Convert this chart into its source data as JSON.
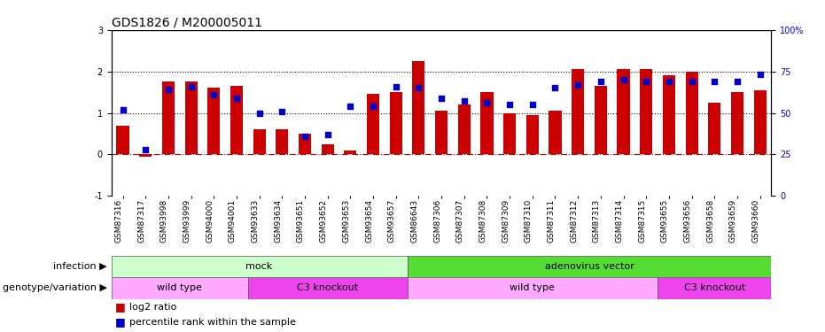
{
  "title": "GDS1826 / M200005011",
  "samples": [
    "GSM87316",
    "GSM87317",
    "GSM93998",
    "GSM93999",
    "GSM94000",
    "GSM94001",
    "GSM93633",
    "GSM93634",
    "GSM93651",
    "GSM93652",
    "GSM93653",
    "GSM93654",
    "GSM93657",
    "GSM86643",
    "GSM87306",
    "GSM87307",
    "GSM87308",
    "GSM87309",
    "GSM87310",
    "GSM87311",
    "GSM87312",
    "GSM87313",
    "GSM87314",
    "GSM87315",
    "GSM93655",
    "GSM93656",
    "GSM93658",
    "GSM93659",
    "GSM93660"
  ],
  "log2_ratio": [
    0.7,
    -0.05,
    1.75,
    1.75,
    1.6,
    1.65,
    0.6,
    0.6,
    0.5,
    0.25,
    0.1,
    1.45,
    1.5,
    2.25,
    1.05,
    1.2,
    1.5,
    1.0,
    0.95,
    1.05,
    2.05,
    1.65,
    2.05,
    2.05,
    1.9,
    2.0,
    1.25,
    1.5,
    1.55
  ],
  "percentile_rank_pct": [
    52,
    28,
    64,
    66,
    61,
    59,
    50,
    51,
    36,
    37,
    54,
    54,
    66,
    65,
    59,
    57,
    56,
    55,
    55,
    65,
    67,
    69,
    70,
    69,
    69,
    69,
    69,
    69,
    73
  ],
  "bar_color": "#cc0000",
  "dot_color": "#0000cc",
  "ylim_left": [
    -1,
    3
  ],
  "ylim_right": [
    0,
    100
  ],
  "yticks_left": [
    -1,
    0,
    1,
    2,
    3
  ],
  "yticks_right": [
    0,
    25,
    50,
    75,
    100
  ],
  "infection_labels": [
    {
      "text": "mock",
      "start": 0,
      "end": 13,
      "color": "#ccffcc"
    },
    {
      "text": "adenovirus vector",
      "start": 13,
      "end": 29,
      "color": "#55dd33"
    }
  ],
  "genotype_labels": [
    {
      "text": "wild type",
      "start": 0,
      "end": 6,
      "color": "#ffaaff"
    },
    {
      "text": "C3 knockout",
      "start": 6,
      "end": 13,
      "color": "#ee44ee"
    },
    {
      "text": "wild type",
      "start": 13,
      "end": 24,
      "color": "#ffaaff"
    },
    {
      "text": "C3 knockout",
      "start": 24,
      "end": 29,
      "color": "#ee44ee"
    }
  ],
  "infection_row_label": "infection",
  "genotype_row_label": "genotype/variation",
  "legend_red": "log2 ratio",
  "legend_blue": "percentile rank within the sample",
  "background_color": "#ffffff",
  "title_fontsize": 10,
  "tick_fontsize": 7,
  "sample_fontsize": 6.5,
  "row_label_fontsize": 8,
  "legend_fontsize": 8
}
